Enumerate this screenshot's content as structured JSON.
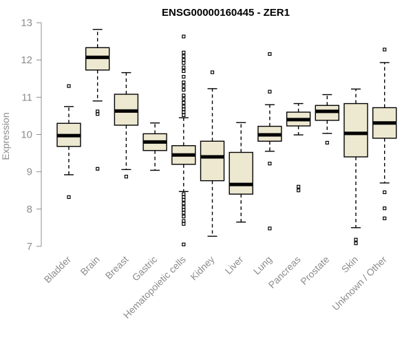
{
  "chart_data": {
    "type": "boxplot",
    "title": "ENSG00000160445 - ZER1",
    "xlabel": "",
    "ylabel": "Expression",
    "ylim": [
      7,
      13
    ],
    "yticks": [
      7,
      8,
      9,
      10,
      11,
      12,
      13
    ],
    "colors": {
      "box_fill": "#ede8d0",
      "axis": "#8c8c8c"
    },
    "categories": [
      "Bladder",
      "Brain",
      "Breast",
      "Gastric",
      "Hematopoietic cells",
      "Kidney",
      "Liver",
      "Lung",
      "Pancreas",
      "Prostate",
      "Skin",
      "Unknown / Other"
    ],
    "boxes": [
      {
        "category": "Bladder",
        "whisker_low": 8.92,
        "q1": 9.68,
        "median": 9.97,
        "q3": 10.3,
        "whisker_high": 10.75,
        "outliers": [
          11.3,
          8.32
        ]
      },
      {
        "category": "Brain",
        "whisker_low": 10.9,
        "q1": 11.73,
        "median": 12.07,
        "q3": 12.33,
        "whisker_high": 12.82,
        "outliers": [
          10.62,
          10.55,
          9.08
        ]
      },
      {
        "category": "Breast",
        "whisker_low": 9.06,
        "q1": 10.25,
        "median": 10.63,
        "q3": 11.08,
        "whisker_high": 11.66,
        "outliers": [
          8.87
        ]
      },
      {
        "category": "Gastric",
        "whisker_low": 9.04,
        "q1": 9.57,
        "median": 9.8,
        "q3": 10.02,
        "whisker_high": 10.31,
        "outliers": []
      },
      {
        "category": "Hematopoietic cells",
        "whisker_low": 8.47,
        "q1": 9.2,
        "median": 9.45,
        "q3": 9.7,
        "whisker_high": 10.45,
        "outliers": [
          12.63,
          12.2,
          12.1,
          12.0,
          11.92,
          11.8,
          11.7,
          11.55,
          11.4,
          11.3,
          11.2,
          11.05,
          10.95,
          10.85,
          10.75,
          10.68,
          10.6,
          10.52,
          8.4,
          8.32,
          8.25,
          8.15,
          8.05,
          7.98,
          7.9,
          7.8,
          7.68,
          7.6,
          7.05
        ]
      },
      {
        "category": "Kidney",
        "whisker_low": 7.27,
        "q1": 8.76,
        "median": 9.4,
        "q3": 9.82,
        "whisker_high": 11.23,
        "outliers": [
          11.67
        ]
      },
      {
        "category": "Liver",
        "whisker_low": 7.65,
        "q1": 8.4,
        "median": 8.66,
        "q3": 9.52,
        "whisker_high": 10.32,
        "outliers": []
      },
      {
        "category": "Lung",
        "whisker_low": 9.55,
        "q1": 9.82,
        "median": 9.99,
        "q3": 10.22,
        "whisker_high": 10.8,
        "outliers": [
          12.16,
          11.15,
          9.22,
          7.48
        ]
      },
      {
        "category": "Pancreas",
        "whisker_low": 9.99,
        "q1": 10.23,
        "median": 10.4,
        "q3": 10.6,
        "whisker_high": 10.83,
        "outliers": [
          8.6,
          8.5
        ]
      },
      {
        "category": "Prostate",
        "whisker_low": 10.03,
        "q1": 10.38,
        "median": 10.62,
        "q3": 10.78,
        "whisker_high": 11.07,
        "outliers": [
          9.78
        ]
      },
      {
        "category": "Skin",
        "whisker_low": 7.5,
        "q1": 9.4,
        "median": 10.03,
        "q3": 10.83,
        "whisker_high": 11.22,
        "outliers": [
          7.18,
          7.08
        ]
      },
      {
        "category": "Unknown / Other",
        "whisker_low": 8.7,
        "q1": 9.9,
        "median": 10.31,
        "q3": 10.72,
        "whisker_high": 11.93,
        "outliers": [
          12.28,
          8.45,
          8.02,
          7.75
        ]
      }
    ]
  }
}
